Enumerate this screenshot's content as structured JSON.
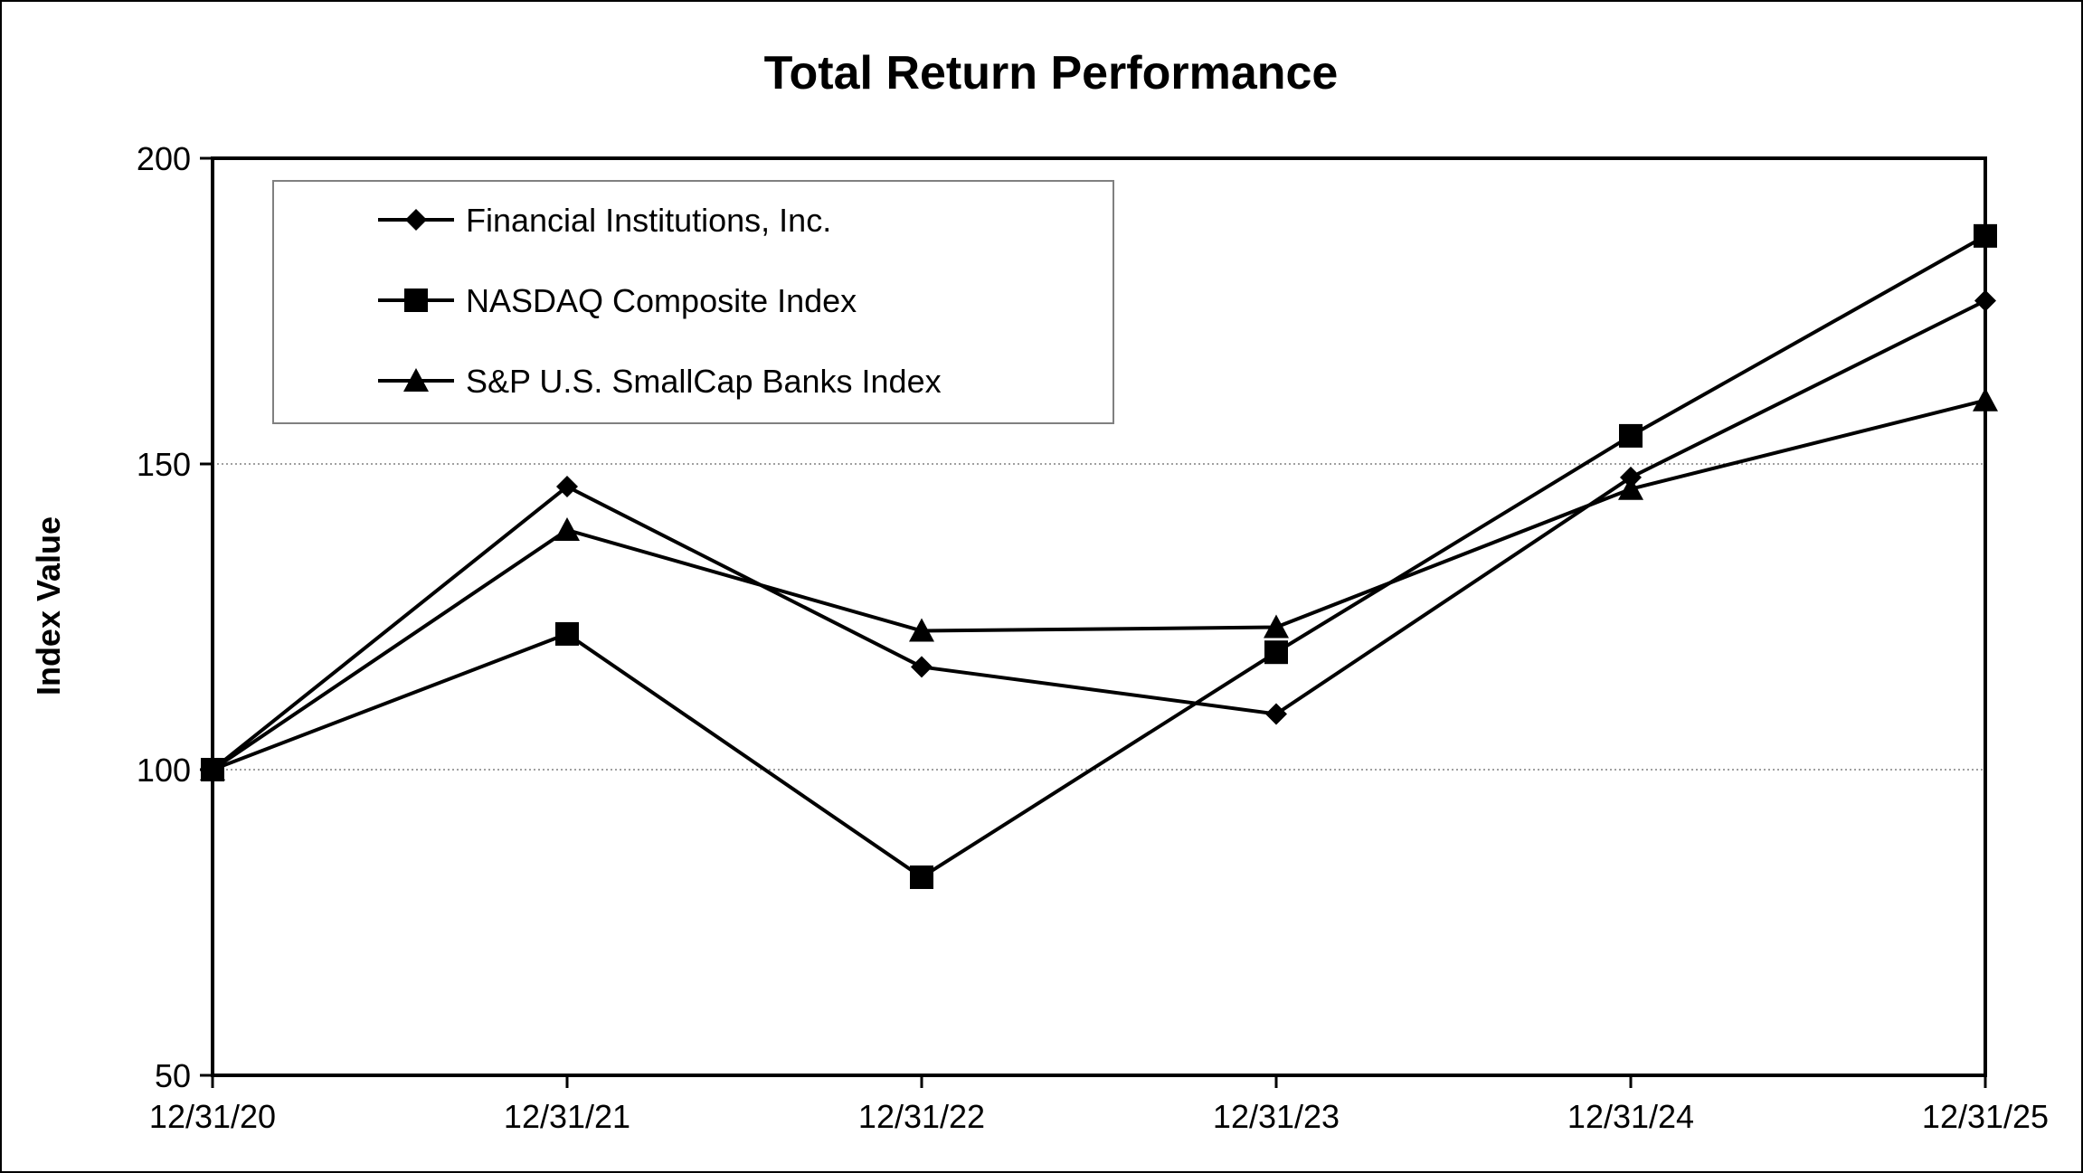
{
  "chart_data": {
    "type": "line",
    "title": "Total Return Performance",
    "xlabel": "",
    "ylabel": "Index Value",
    "categories": [
      "12/31/20",
      "12/31/21",
      "12/31/22",
      "12/31/23",
      "12/31/24",
      "12/31/25"
    ],
    "ylim": [
      50,
      200
    ],
    "yticks": [
      "50",
      "100",
      "150",
      "200"
    ],
    "grid": "horizontal-dotted",
    "legend_placement": "top-left",
    "line_color": "#000000",
    "series": [
      {
        "name": "Financial Institutions, Inc.",
        "marker": "diamond",
        "values": [
          100,
          146.3,
          116.8,
          109.1,
          147.8,
          176.7
        ]
      },
      {
        "name": "NASDAQ Composite Index",
        "marker": "square",
        "values": [
          100,
          122.2,
          82.4,
          119.2,
          154.6,
          187.3
        ]
      },
      {
        "name": "S&P U.S. SmallCap Banks Index",
        "marker": "triangle",
        "values": [
          100,
          139.2,
          122.7,
          123.3,
          145.9,
          160.4
        ]
      }
    ]
  }
}
